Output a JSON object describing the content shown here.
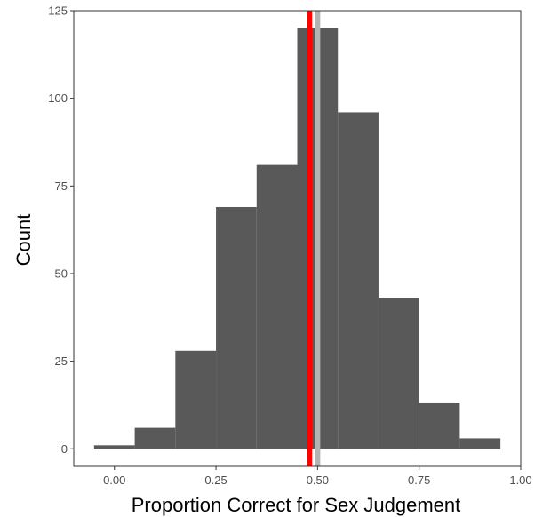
{
  "chart_data": {
    "type": "bar",
    "xlabel": "Proportion Correct for Sex Judgement",
    "ylabel": "Count",
    "xlim": [
      -0.1,
      1.0
    ],
    "ylim": [
      -5,
      125
    ],
    "bin_width": 0.1,
    "bins": [
      {
        "x_start": -0.05,
        "x_end": 0.05,
        "count": 1
      },
      {
        "x_start": 0.05,
        "x_end": 0.15,
        "count": 6
      },
      {
        "x_start": 0.15,
        "x_end": 0.25,
        "count": 28
      },
      {
        "x_start": 0.25,
        "x_end": 0.35,
        "count": 69
      },
      {
        "x_start": 0.35,
        "x_end": 0.45,
        "count": 81
      },
      {
        "x_start": 0.45,
        "x_end": 0.55,
        "count": 120
      },
      {
        "x_start": 0.55,
        "x_end": 0.65,
        "count": 96
      },
      {
        "x_start": 0.65,
        "x_end": 0.75,
        "count": 43
      },
      {
        "x_start": 0.75,
        "x_end": 0.85,
        "count": 13
      },
      {
        "x_start": 0.85,
        "x_end": 0.95,
        "count": 3
      }
    ],
    "x_ticks": [
      0.0,
      0.25,
      0.5,
      0.75,
      1.0
    ],
    "x_tick_labels": [
      "0.00",
      "0.25",
      "0.50",
      "0.75",
      "1.00"
    ],
    "y_ticks": [
      0,
      25,
      50,
      75,
      100,
      125
    ],
    "y_tick_labels": [
      "0",
      "25",
      "50",
      "75",
      "100",
      "125"
    ],
    "reference_lines": [
      {
        "x": 0.5,
        "color": "#b3b3b3"
      },
      {
        "x": 0.48,
        "color": "#ff0000"
      }
    ],
    "bar_color": "#595959",
    "grid": false,
    "legend": "none"
  }
}
